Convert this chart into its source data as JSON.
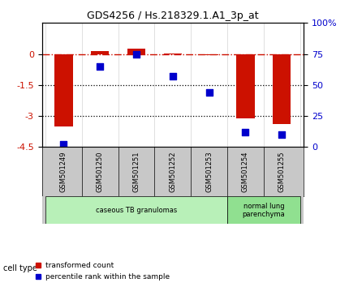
{
  "title": "GDS4256 / Hs.218329.1.A1_3p_at",
  "categories": [
    "GSM501249",
    "GSM501250",
    "GSM501251",
    "GSM501252",
    "GSM501253",
    "GSM501254",
    "GSM501255"
  ],
  "red_values": [
    -3.5,
    0.15,
    0.25,
    0.02,
    -0.05,
    -3.1,
    -3.4
  ],
  "blue_values": [
    2,
    65,
    75,
    57,
    44,
    12,
    10
  ],
  "ylim_left": [
    -4.5,
    1.5
  ],
  "ylim_right": [
    0,
    100
  ],
  "yticks_left": [
    0,
    -1.5,
    -3,
    -4.5
  ],
  "yticks_right": [
    0,
    25,
    50,
    75,
    100
  ],
  "ytick_labels_left": [
    "0",
    "-1.5",
    "-3",
    "-4.5"
  ],
  "ytick_labels_right": [
    "0",
    "25",
    "50",
    "75",
    "100%"
  ],
  "hline_y": 0,
  "dotted_lines": [
    -1.5,
    -3.0
  ],
  "cell_type_groups": [
    {
      "label": "caseous TB granulomas",
      "start": 0,
      "end": 4,
      "color": "#b8f0b8"
    },
    {
      "label": "normal lung\nparenchyma",
      "start": 5,
      "end": 6,
      "color": "#90e090"
    }
  ],
  "bar_color": "#cc1100",
  "dot_color": "#0000cc",
  "dashed_line_color": "#cc1100",
  "background_color": "#ffffff",
  "cell_type_label": "cell type",
  "legend_red": "transformed count",
  "legend_blue": "percentile rank within the sample",
  "bar_width": 0.5,
  "dot_size": 30
}
